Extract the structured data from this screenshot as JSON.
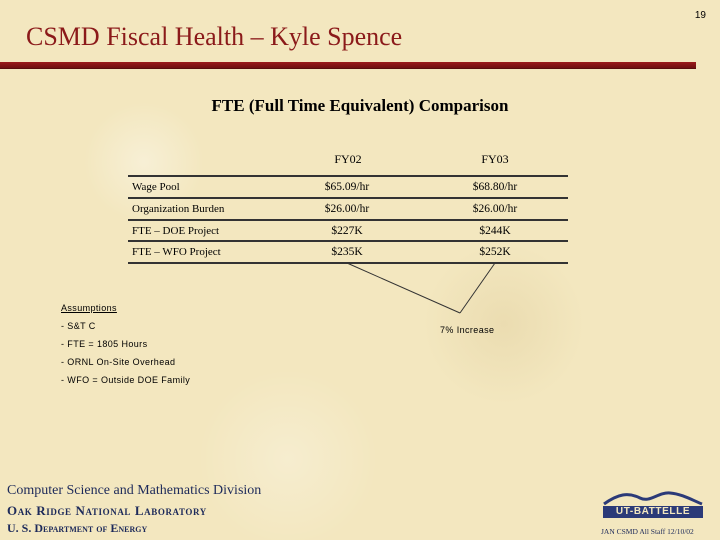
{
  "slide": {
    "title": "CSMD Fiscal Health – Kyle Spence",
    "page_number": "19",
    "accent_color": "#8b1a1a"
  },
  "table": {
    "heading": "FTE (Full Time Equivalent) Comparison",
    "columns": [
      "FY02",
      "FY03"
    ],
    "rows": [
      {
        "label": "Wage Pool",
        "fy02": "$65.09/hr",
        "fy03": "$68.80/hr"
      },
      {
        "label": "Organization Burden",
        "fy02": "$26.00/hr",
        "fy03": "$26.00/hr"
      },
      {
        "label": "FTE – DOE Project",
        "fy02": "$227K",
        "fy03": "$244K"
      },
      {
        "label": "FTE – WFO Project",
        "fy02": "$235K",
        "fy03": "$252K"
      }
    ]
  },
  "callout": {
    "label": "7% Increase"
  },
  "assumptions": {
    "heading": "Assumptions",
    "items": [
      "- S&T C",
      "- FTE = 1805 Hours",
      "- ORNL On-Site Overhead",
      "- WFO = Outside DOE Family"
    ]
  },
  "footer": {
    "division": "Computer Science and Mathematics Division",
    "lab": "Oak Ridge National Laboratory",
    "department": "U. S. Department of Energy",
    "credit": "JAN CSMD All Staff 12/10/02",
    "logo_text": "UT-BATTELLE",
    "text_color": "#1d2a5a"
  }
}
